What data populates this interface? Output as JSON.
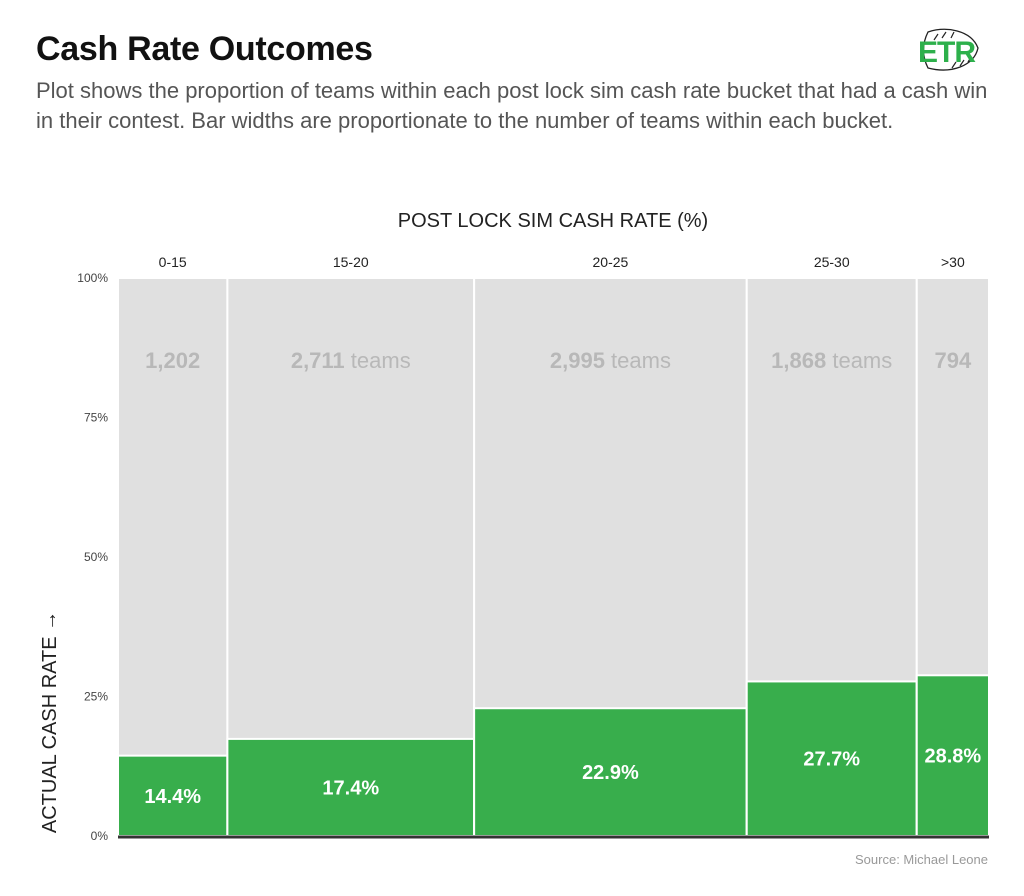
{
  "header": {
    "title": "Cash Rate Outcomes",
    "subtitle": "Plot shows the proportion of teams within each post lock sim cash rate bucket that had a cash win in their contest. Bar widths are proportionate to the number of teams within each bucket.",
    "logo_text": "ETR",
    "logo_icon": "football-icon"
  },
  "footer": {
    "source": "Source: Michael Leone"
  },
  "colors": {
    "cash": "#38ae4c",
    "background_bar": "#e0e0e0",
    "count_label": "#b8b8b8",
    "brand": "#2db04b"
  },
  "chart_data": {
    "type": "bar",
    "subtype": "marimekko",
    "title": "Cash Rate Outcomes",
    "xlabel": "POST LOCK SIM CASH RATE (%)",
    "ylabel": "ACTUAL CASH RATE →",
    "ylim": [
      0,
      100
    ],
    "yticks": [
      0,
      25,
      50,
      75,
      100
    ],
    "ytick_labels": [
      "0%",
      "25%",
      "50%",
      "75%",
      "100%"
    ],
    "categories": [
      "0-15",
      "15-20",
      "20-25",
      "25-30",
      ">30"
    ],
    "team_counts": [
      1202,
      2711,
      2995,
      1868,
      794
    ],
    "count_labels": [
      {
        "number": "1,202",
        "suffix": ""
      },
      {
        "number": "2,711",
        "suffix": " teams"
      },
      {
        "number": "2,995",
        "suffix": " teams"
      },
      {
        "number": "1,868",
        "suffix": " teams"
      },
      {
        "number": "794",
        "suffix": ""
      }
    ],
    "values": [
      14.4,
      17.4,
      22.9,
      27.7,
      28.8
    ],
    "value_labels": [
      "14.4%",
      "17.4%",
      "22.9%",
      "27.7%",
      "28.8%"
    ],
    "grid": false,
    "legend": "none"
  }
}
